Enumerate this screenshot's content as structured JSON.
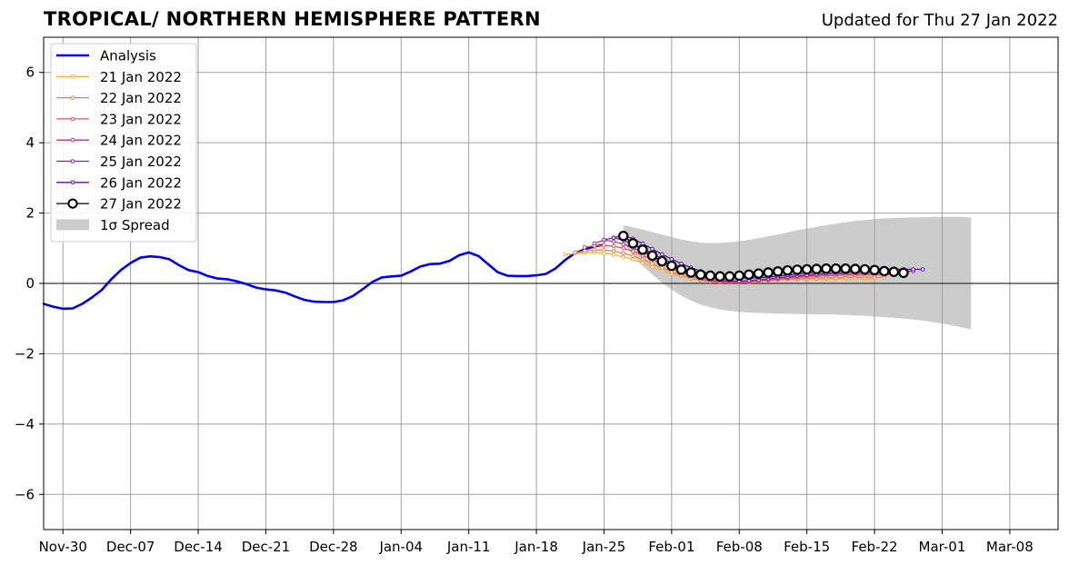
{
  "chart_data": {
    "type": "line",
    "title": "TROPICAL/ NORTHERN HEMISPHERE PATTERN",
    "subtitle": "Updated for Thu 27 Jan 2022",
    "xlabel": "",
    "ylabel": "",
    "x_start_date": "2021-11-28",
    "x_end_date": "2022-03-13",
    "ylim": [
      -7,
      7
    ],
    "grid": true,
    "legend_position": "top-left",
    "x_ticks": [
      {
        "date": "2021-11-30",
        "label": "Nov-30"
      },
      {
        "date": "2021-12-07",
        "label": "Dec-07"
      },
      {
        "date": "2021-12-14",
        "label": "Dec-14"
      },
      {
        "date": "2021-12-21",
        "label": "Dec-21"
      },
      {
        "date": "2021-12-28",
        "label": "Dec-28"
      },
      {
        "date": "2022-01-04",
        "label": "Jan-04"
      },
      {
        "date": "2022-01-11",
        "label": "Jan-11"
      },
      {
        "date": "2022-01-18",
        "label": "Jan-18"
      },
      {
        "date": "2022-01-25",
        "label": "Jan-25"
      },
      {
        "date": "2022-02-01",
        "label": "Feb-01"
      },
      {
        "date": "2022-02-08",
        "label": "Feb-08"
      },
      {
        "date": "2022-02-15",
        "label": "Feb-15"
      },
      {
        "date": "2022-02-22",
        "label": "Feb-22"
      },
      {
        "date": "2022-03-01",
        "label": "Mar-01"
      },
      {
        "date": "2022-03-08",
        "label": "Mar-08"
      }
    ],
    "y_ticks": [
      {
        "value": 6,
        "label": "6"
      },
      {
        "value": 4,
        "label": "4"
      },
      {
        "value": 2,
        "label": "2"
      },
      {
        "value": 0,
        "label": "0"
      },
      {
        "value": -2,
        "label": "−2"
      },
      {
        "value": -4,
        "label": "−4"
      },
      {
        "value": -6,
        "label": "−6"
      }
    ],
    "analysis": {
      "name": "Analysis",
      "color": "#0000ee",
      "start_date": "2021-11-28",
      "values": [
        -0.58,
        -0.66,
        -0.72,
        -0.71,
        -0.58,
        -0.4,
        -0.19,
        0.12,
        0.38,
        0.58,
        0.73,
        0.77,
        0.75,
        0.69,
        0.52,
        0.38,
        0.32,
        0.21,
        0.14,
        0.12,
        0.06,
        -0.02,
        -0.12,
        -0.17,
        -0.2,
        -0.26,
        -0.37,
        -0.47,
        -0.52,
        -0.53,
        -0.53,
        -0.48,
        -0.36,
        -0.17,
        0.04,
        0.17,
        0.2,
        0.22,
        0.34,
        0.48,
        0.55,
        0.56,
        0.64,
        0.8,
        0.88,
        0.78,
        0.55,
        0.32,
        0.22,
        0.21,
        0.21,
        0.23,
        0.27,
        0.43,
        0.67,
        0.86,
        0.97,
        1.05,
        1.1
      ]
    },
    "forecasts": [
      {
        "name": "21 Jan 2022",
        "color": "#fcae38",
        "start_date": "2022-01-21",
        "values": [
          0.82,
          0.85,
          0.87,
          0.88,
          0.86,
          0.82,
          0.76,
          0.68,
          0.58,
          0.47,
          0.37,
          0.28,
          0.2,
          0.14,
          0.09,
          0.06,
          0.05,
          0.05,
          0.06,
          0.07,
          0.08,
          0.09,
          0.1,
          0.11,
          0.12,
          0.12,
          0.13,
          0.13,
          0.13,
          0.13,
          0.13,
          0.13,
          0.13
        ]
      },
      {
        "name": "22 Jan 2022",
        "color": "#f07f3c",
        "start_date": "2022-01-22",
        "values": [
          0.88,
          0.92,
          0.95,
          0.95,
          0.92,
          0.86,
          0.78,
          0.68,
          0.56,
          0.44,
          0.33,
          0.23,
          0.15,
          0.09,
          0.05,
          0.03,
          0.02,
          0.03,
          0.04,
          0.06,
          0.08,
          0.1,
          0.12,
          0.13,
          0.14,
          0.15,
          0.16,
          0.16,
          0.17,
          0.17,
          0.17,
          0.17,
          0.17
        ]
      },
      {
        "name": "23 Jan 2022",
        "color": "#d9546a",
        "start_date": "2022-01-23",
        "values": [
          1.03,
          1.07,
          1.08,
          1.06,
          1.0,
          0.91,
          0.8,
          0.68,
          0.55,
          0.42,
          0.31,
          0.21,
          0.13,
          0.07,
          0.04,
          0.03,
          0.04,
          0.06,
          0.08,
          0.1,
          0.13,
          0.15,
          0.17,
          0.19,
          0.21,
          0.22,
          0.23,
          0.24,
          0.24,
          0.25,
          0.25,
          0.25,
          0.25
        ]
      },
      {
        "name": "24 Jan 2022",
        "color": "#b8328f",
        "start_date": "2022-01-24",
        "values": [
          1.14,
          1.23,
          1.19,
          1.11,
          1.01,
          0.89,
          0.76,
          0.63,
          0.5,
          0.38,
          0.27,
          0.18,
          0.11,
          0.07,
          0.05,
          0.05,
          0.07,
          0.09,
          0.12,
          0.15,
          0.17,
          0.2,
          0.22,
          0.24,
          0.26,
          0.27,
          0.28,
          0.29,
          0.29,
          0.3,
          0.3,
          0.3,
          0.3
        ]
      },
      {
        "name": "25 Jan 2022",
        "color": "#8b1fae",
        "start_date": "2022-01-25",
        "values": [
          1.24,
          1.3,
          1.23,
          1.12,
          0.99,
          0.85,
          0.71,
          0.58,
          0.45,
          0.34,
          0.25,
          0.17,
          0.11,
          0.08,
          0.07,
          0.08,
          0.1,
          0.13,
          0.16,
          0.19,
          0.22,
          0.24,
          0.27,
          0.29,
          0.3,
          0.32,
          0.33,
          0.33,
          0.34,
          0.34,
          0.35,
          0.35,
          0.35
        ]
      },
      {
        "name": "26 Jan 2022",
        "color": "#5a119c",
        "start_date": "2022-01-26",
        "values": [
          1.3,
          1.37,
          1.27,
          1.13,
          0.98,
          0.83,
          0.69,
          0.56,
          0.45,
          0.35,
          0.27,
          0.21,
          0.17,
          0.15,
          0.15,
          0.16,
          0.18,
          0.21,
          0.24,
          0.27,
          0.3,
          0.32,
          0.34,
          0.36,
          0.37,
          0.38,
          0.39,
          0.39,
          0.4,
          0.4,
          0.4,
          0.4,
          0.4
        ]
      }
    ],
    "current_forecast": {
      "name": "27 Jan 2022",
      "color": "#000000",
      "start_date": "2022-01-27",
      "values": [
        1.35,
        1.14,
        0.96,
        0.79,
        0.63,
        0.5,
        0.39,
        0.31,
        0.25,
        0.22,
        0.2,
        0.2,
        0.22,
        0.25,
        0.28,
        0.31,
        0.34,
        0.37,
        0.39,
        0.4,
        0.41,
        0.42,
        0.42,
        0.42,
        0.41,
        0.4,
        0.38,
        0.35,
        0.33,
        0.3
      ]
    },
    "spread": {
      "name": "1σ Spread",
      "color": "#cccccc",
      "start_date": "2022-01-27",
      "upper": [
        1.65,
        1.6,
        1.53,
        1.46,
        1.39,
        1.32,
        1.25,
        1.2,
        1.16,
        1.15,
        1.15,
        1.17,
        1.2,
        1.24,
        1.29,
        1.34,
        1.39,
        1.45,
        1.51,
        1.56,
        1.61,
        1.66,
        1.7,
        1.74,
        1.78,
        1.8,
        1.83,
        1.85,
        1.86,
        1.87,
        1.88,
        1.88,
        1.89,
        1.89,
        1.89,
        1.89,
        1.88
      ],
      "lower": [
        1.15,
        0.8,
        0.5,
        0.25,
        0.02,
        -0.18,
        -0.35,
        -0.49,
        -0.6,
        -0.68,
        -0.74,
        -0.78,
        -0.81,
        -0.83,
        -0.84,
        -0.85,
        -0.86,
        -0.86,
        -0.87,
        -0.87,
        -0.88,
        -0.88,
        -0.89,
        -0.9,
        -0.91,
        -0.92,
        -0.94,
        -0.96,
        -0.98,
        -1.0,
        -1.03,
        -1.06,
        -1.1,
        -1.14,
        -1.19,
        -1.25,
        -1.31
      ]
    }
  }
}
